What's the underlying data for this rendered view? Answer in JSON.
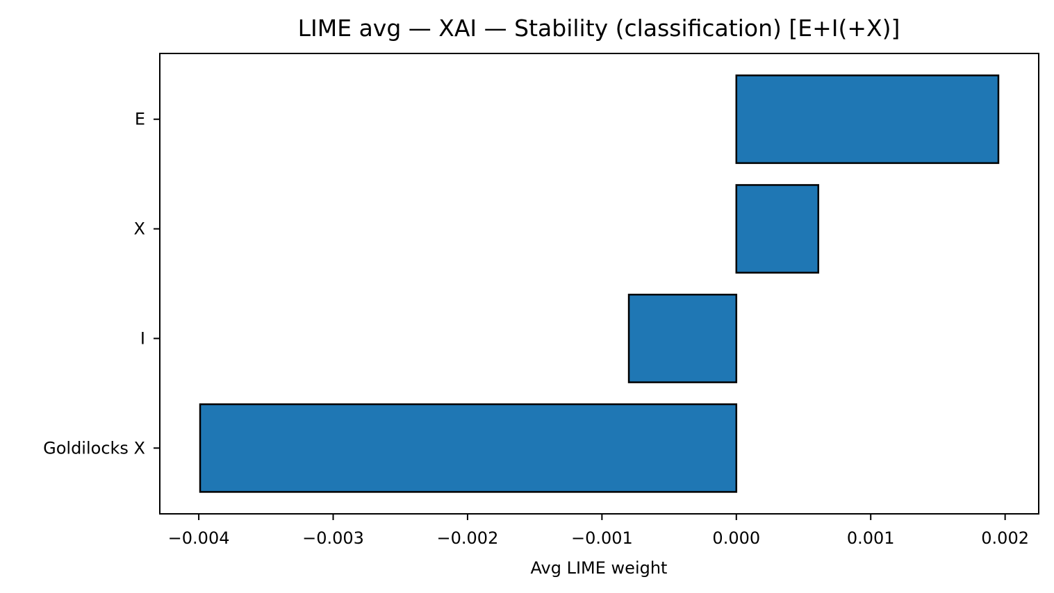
{
  "chart_data": {
    "type": "bar",
    "orientation": "horizontal",
    "title": "LIME avg — XAI — Stability (classification) [E+I(+X)]",
    "xlabel": "Avg LIME weight",
    "ylabel": "",
    "categories": [
      "Goldilocks X",
      "I",
      "X",
      "E"
    ],
    "values": [
      -0.00399,
      -0.0008,
      0.00061,
      0.00195
    ],
    "xlim": [
      -0.00429,
      0.00225
    ],
    "x_ticks": [
      -0.004,
      -0.003,
      -0.002,
      -0.001,
      0.0,
      0.001,
      0.002
    ],
    "x_tick_labels": [
      "−0.004",
      "−0.003",
      "−0.002",
      "−0.001",
      "0.000",
      "0.001",
      "0.002"
    ],
    "bar_color": "#1f77b4",
    "edge_color": "#000000",
    "grid": false,
    "legend": "none"
  }
}
